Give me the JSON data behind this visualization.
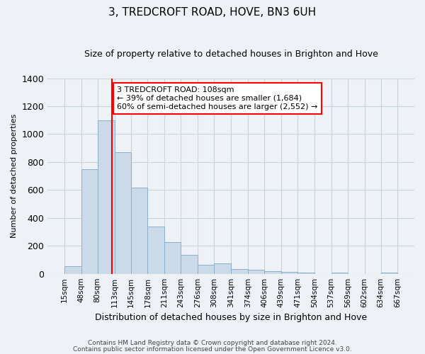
{
  "title": "3, TREDCROFT ROAD, HOVE, BN3 6UH",
  "subtitle": "Size of property relative to detached houses in Brighton and Hove",
  "xlabel": "Distribution of detached houses by size in Brighton and Hove",
  "ylabel": "Number of detached properties",
  "bar_color": "#ccd9e8",
  "bar_edge_color": "#8ab0cc",
  "grid_color": "#c8d4dc",
  "background_color": "#eef2f7",
  "vline_x": 108,
  "vline_color": "red",
  "bin_edges": [
    15,
    48,
    80,
    113,
    145,
    178,
    211,
    243,
    276,
    308,
    341,
    374,
    406,
    439,
    471,
    504,
    537,
    569,
    602,
    634,
    667
  ],
  "bar_heights": [
    55,
    750,
    1100,
    870,
    615,
    340,
    225,
    135,
    65,
    75,
    35,
    30,
    20,
    15,
    10,
    0,
    10,
    0,
    0,
    10
  ],
  "annotation_line1": "3 TREDCROFT ROAD: 108sqm",
  "annotation_line2": "← 39% of detached houses are smaller (1,684)",
  "annotation_line3": "60% of semi-detached houses are larger (2,552) →",
  "annotation_box_color": "white",
  "annotation_box_edge_color": "red",
  "footer_line1": "Contains HM Land Registry data © Crown copyright and database right 2024.",
  "footer_line2": "Contains public sector information licensed under the Open Government Licence v3.0.",
  "ylim": [
    0,
    1400
  ],
  "yticks": [
    0,
    200,
    400,
    600,
    800,
    1000,
    1200,
    1400
  ],
  "title_fontsize": 11,
  "subtitle_fontsize": 9,
  "ylabel_fontsize": 8,
  "xlabel_fontsize": 9,
  "tick_fontsize": 7.5,
  "annotation_fontsize": 8
}
